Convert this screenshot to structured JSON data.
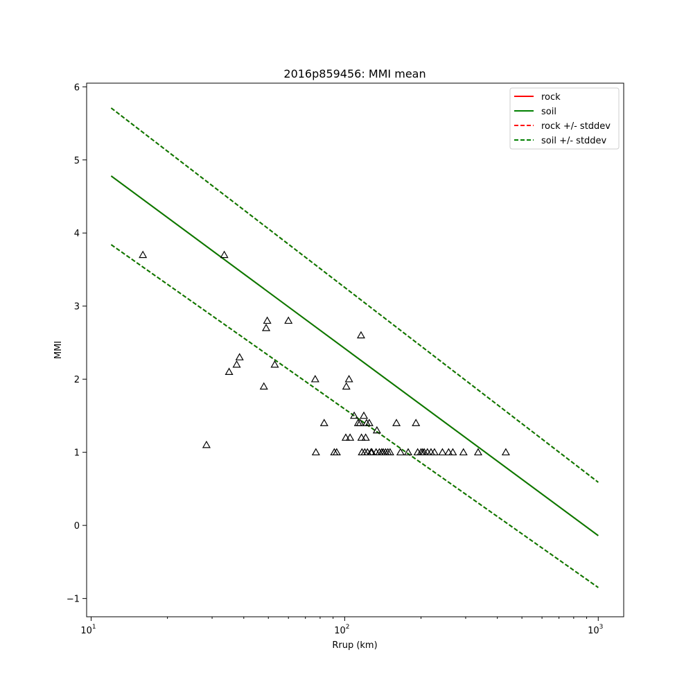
{
  "chart_data": {
    "type": "scatter",
    "title": "2016p859456: MMI mean",
    "xlabel": "Rrup (km)",
    "ylabel": "MMI",
    "xscale": "log",
    "xlim": [
      9.6,
      1260
    ],
    "ylim": [
      -1.25,
      6.05
    ],
    "xticks": [
      {
        "value": 10,
        "base": "10",
        "exp": "1"
      },
      {
        "value": 100,
        "base": "10",
        "exp": "2"
      },
      {
        "value": 1000,
        "base": "10",
        "exp": "3"
      }
    ],
    "yticks": [
      -1,
      0,
      1,
      2,
      3,
      4,
      5,
      6
    ],
    "grid": false,
    "legend_position": "top-right",
    "series": [
      {
        "name": "rock",
        "kind": "line",
        "color": "#ff0000",
        "dash": false,
        "x": [
          12,
          1000
        ],
        "y": [
          4.78,
          -0.14
        ]
      },
      {
        "name": "soil",
        "kind": "line",
        "color": "#008000",
        "dash": false,
        "x": [
          12,
          1000
        ],
        "y": [
          4.78,
          -0.14
        ]
      },
      {
        "name": "rock +/- stddev",
        "kind": "band",
        "color": "#ff0000",
        "dash": true,
        "x": [
          12,
          1000
        ],
        "upper": [
          5.71,
          0.59
        ],
        "lower": [
          3.84,
          -0.85
        ]
      },
      {
        "name": "soil +/- stddev",
        "kind": "band",
        "color": "#008000",
        "dash": true,
        "x": [
          12,
          1000
        ],
        "upper": [
          5.71,
          0.59
        ],
        "lower": [
          3.84,
          -0.85
        ]
      }
    ],
    "observations": {
      "marker": "triangle-open",
      "color": "#000000",
      "x": [
        16,
        28.5,
        33.5,
        35,
        37.5,
        38.5,
        48,
        49,
        49.5,
        53,
        60,
        76.5,
        77,
        83,
        91,
        93,
        101,
        101.5,
        104,
        105,
        109,
        113,
        115,
        116,
        116.5,
        117,
        119,
        120,
        121,
        122,
        123,
        125,
        127,
        128,
        133,
        134,
        137,
        140,
        142,
        145,
        148,
        151,
        160,
        166,
        178,
        191,
        194,
        200,
        203,
        206,
        212,
        219,
        226,
        243,
        257,
        267,
        294,
        336,
        432
      ],
      "y": [
        3.7,
        1.1,
        3.7,
        2.1,
        2.2,
        2.3,
        1.9,
        2.7,
        2.8,
        2.2,
        2.8,
        2.0,
        1.0,
        1.4,
        1.0,
        1.0,
        1.2,
        1.9,
        2.0,
        1.2,
        1.5,
        1.4,
        1.4,
        2.6,
        1.2,
        1.0,
        1.5,
        1.0,
        1.2,
        1.4,
        1.0,
        1.4,
        1.0,
        1.0,
        1.0,
        1.3,
        1.0,
        1.0,
        1.0,
        1.0,
        1.0,
        1.0,
        1.4,
        1.0,
        1.0,
        1.4,
        1.0,
        1.0,
        1.0,
        1.0,
        1.0,
        1.0,
        1.0,
        1.0,
        1.0,
        1.0,
        1.0,
        1.0,
        1.0
      ]
    }
  }
}
